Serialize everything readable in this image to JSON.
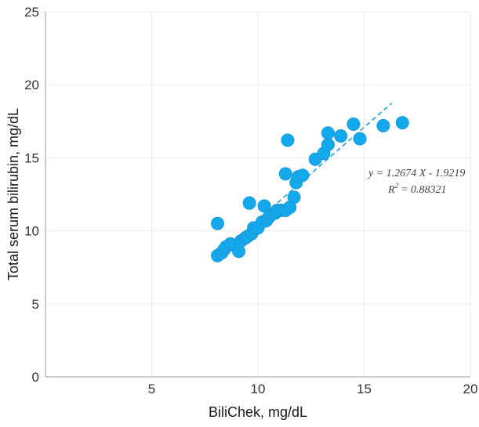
{
  "chart_data": {
    "type": "scatter",
    "xlabel": "BiliChek, mg/dL",
    "ylabel": "Total serum bilirubin, mg/dL",
    "xlim": [
      0,
      20
    ],
    "ylim": [
      0,
      25
    ],
    "x_ticks": [
      "5",
      "10",
      "15",
      "20"
    ],
    "y_ticks": [
      "0",
      "5",
      "10",
      "15",
      "20",
      "25"
    ],
    "grid": true,
    "colors": {
      "points": "#14a8ec",
      "trendline": "#1ea1dc"
    },
    "points": [
      {
        "x": 8.1,
        "y": 10.5
      },
      {
        "x": 8.1,
        "y": 8.3
      },
      {
        "x": 8.3,
        "y": 8.5
      },
      {
        "x": 8.4,
        "y": 8.7
      },
      {
        "x": 8.5,
        "y": 8.9
      },
      {
        "x": 8.7,
        "y": 9.1
      },
      {
        "x": 8.9,
        "y": 9.0
      },
      {
        "x": 9.1,
        "y": 8.6
      },
      {
        "x": 9.2,
        "y": 9.3
      },
      {
        "x": 9.4,
        "y": 9.5
      },
      {
        "x": 9.5,
        "y": 9.6
      },
      {
        "x": 9.6,
        "y": 11.9
      },
      {
        "x": 9.7,
        "y": 9.8
      },
      {
        "x": 9.8,
        "y": 10.2
      },
      {
        "x": 10.0,
        "y": 10.2
      },
      {
        "x": 10.2,
        "y": 10.6
      },
      {
        "x": 10.3,
        "y": 11.7
      },
      {
        "x": 10.4,
        "y": 10.7
      },
      {
        "x": 10.5,
        "y": 10.9
      },
      {
        "x": 10.6,
        "y": 11.1
      },
      {
        "x": 10.8,
        "y": 11.2
      },
      {
        "x": 10.9,
        "y": 11.4
      },
      {
        "x": 11.1,
        "y": 11.4
      },
      {
        "x": 11.3,
        "y": 11.4
      },
      {
        "x": 11.3,
        "y": 13.9
      },
      {
        "x": 11.4,
        "y": 16.2
      },
      {
        "x": 11.5,
        "y": 11.6
      },
      {
        "x": 11.7,
        "y": 12.3
      },
      {
        "x": 11.8,
        "y": 13.3
      },
      {
        "x": 11.9,
        "y": 13.7
      },
      {
        "x": 12.1,
        "y": 13.8
      },
      {
        "x": 12.7,
        "y": 14.9
      },
      {
        "x": 13.1,
        "y": 15.3
      },
      {
        "x": 13.3,
        "y": 15.9
      },
      {
        "x": 13.3,
        "y": 16.7
      },
      {
        "x": 13.9,
        "y": 16.5
      },
      {
        "x": 14.5,
        "y": 17.3
      },
      {
        "x": 14.8,
        "y": 16.3
      },
      {
        "x": 15.9,
        "y": 17.2
      },
      {
        "x": 16.8,
        "y": 17.4
      }
    ],
    "trendline": {
      "x": [
        8.7,
        16.3
      ],
      "y": [
        9.1,
        18.74
      ]
    },
    "annotations": {
      "equation": "y = 1.2674 X - 1.9219",
      "r2_prefix": "R",
      "r2_sup": "2",
      "r2_value": "= 0.88321"
    }
  }
}
